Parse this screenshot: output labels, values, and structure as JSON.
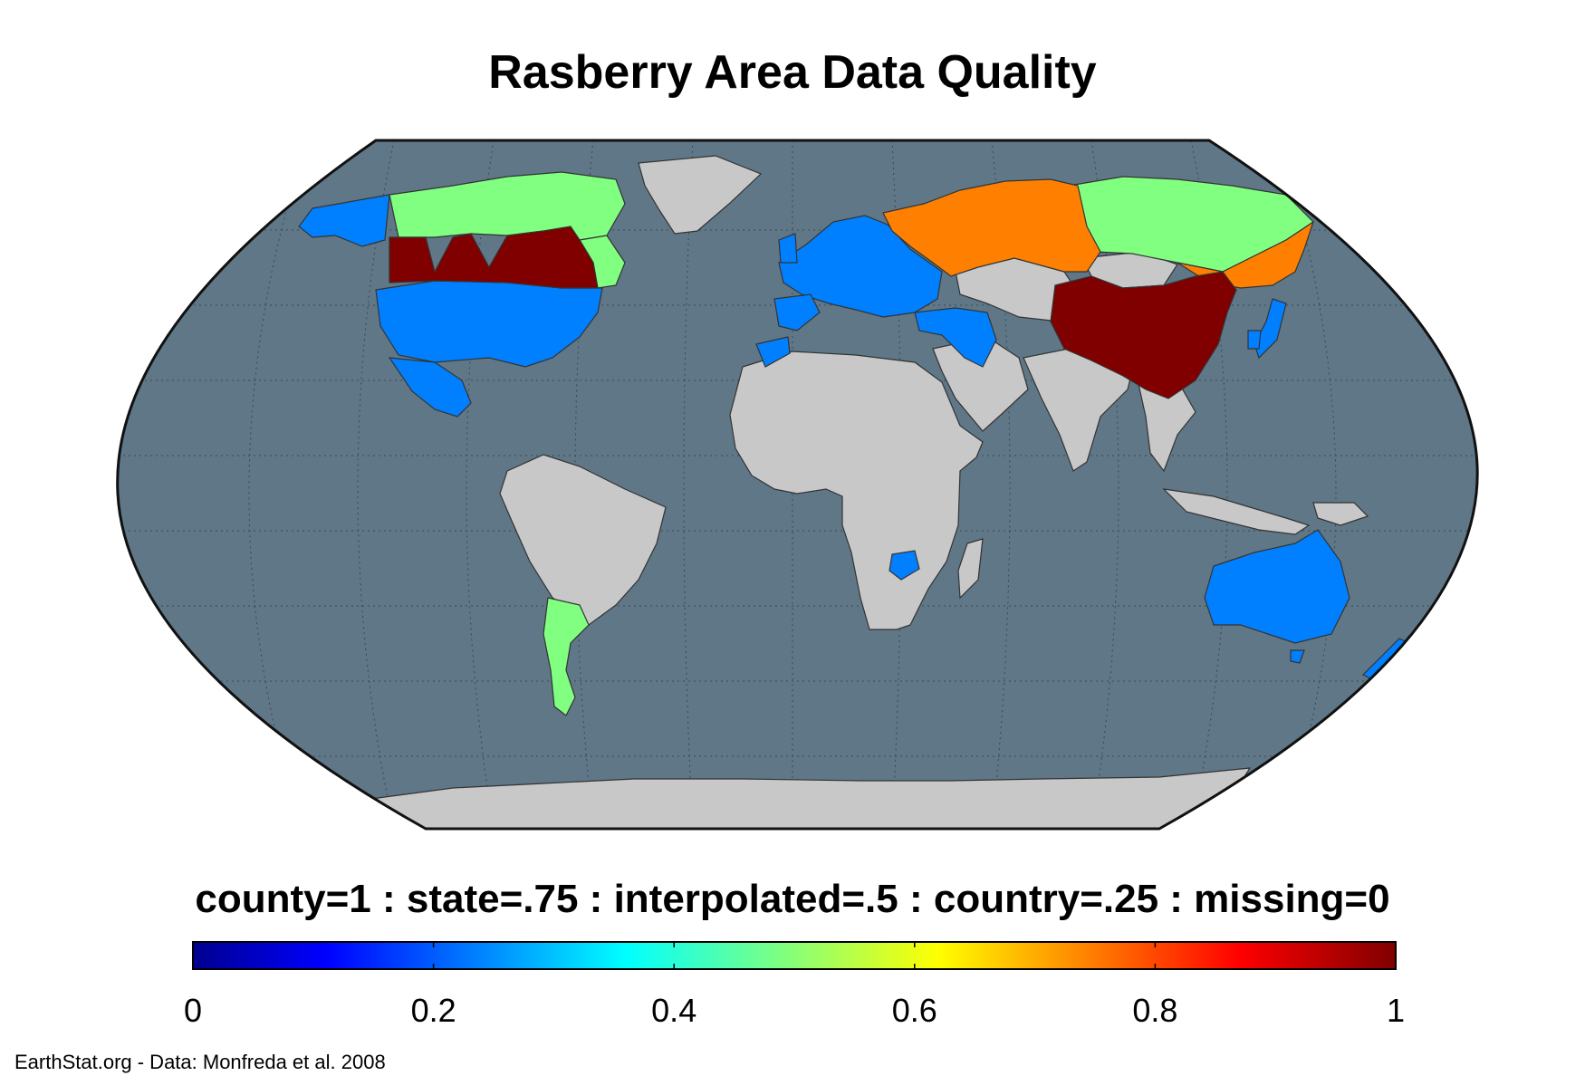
{
  "title": "Rasberry Area Data Quality",
  "legend": {
    "label": "county=1 : state=.75 : interpolated=.5 : country=.25 : missing=0",
    "colormap": "jet",
    "range": [
      0,
      1
    ],
    "ticks": [
      "0",
      "0.2",
      "0.4",
      "0.6",
      "0.8",
      "1"
    ]
  },
  "credit": "EarthStat.org - Data: Monfreda et al. 2008",
  "colors": {
    "ocean": "#5f7787",
    "missing_land": "#c8c8c8",
    "county": "#800000",
    "state": "#ff8000",
    "interpolated": "#80ff80",
    "country": "#0080ff"
  },
  "map_data": {
    "projection": "Robinson",
    "categories": [
      {
        "value": 1,
        "name": "county",
        "regions": [
          "Canada (southern provinces)",
          "China"
        ]
      },
      {
        "value": 0.75,
        "name": "state",
        "regions": [
          "Russia (western)",
          "Russia (far east)"
        ]
      },
      {
        "value": 0.5,
        "name": "interpolated",
        "regions": [
          "Canada (northern territories)",
          "Russia (Siberia)",
          "Argentina"
        ]
      },
      {
        "value": 0.25,
        "name": "country",
        "regions": [
          "Alaska",
          "United States",
          "Mexico",
          "Europe",
          "Turkey",
          "Iran",
          "Morocco",
          "Zimbabwe",
          "Japan",
          "South Korea",
          "Australia",
          "New Zealand"
        ]
      },
      {
        "value": 0,
        "name": "missing",
        "regions": [
          "Greenland",
          "Africa",
          "South America",
          "Middle East",
          "India",
          "Southeast Asia",
          "Antarctica"
        ]
      }
    ]
  }
}
